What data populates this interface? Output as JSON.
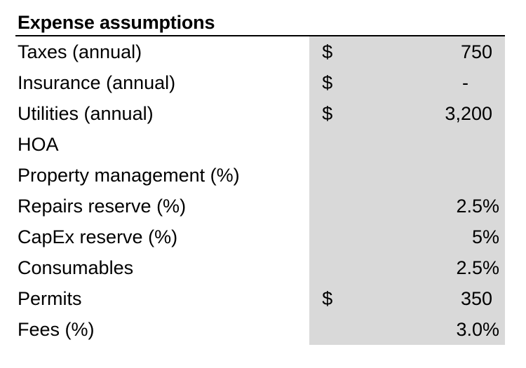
{
  "table": {
    "title": "Expense assumptions",
    "rows": [
      {
        "label": "Taxes (annual)",
        "currency": "$",
        "amount": "750",
        "percent": ""
      },
      {
        "label": "Insurance (annual)",
        "currency": "$",
        "amount": "-",
        "percent": ""
      },
      {
        "label": "Utilities (annual)",
        "currency": "$",
        "amount": "3,200",
        "percent": ""
      },
      {
        "label": "HOA",
        "currency": "",
        "amount": "",
        "percent": ""
      },
      {
        "label": "Property management (%)",
        "currency": "",
        "amount": "",
        "percent": ""
      },
      {
        "label": "Repairs reserve (%)",
        "currency": "",
        "amount": "",
        "percent": "2.5%"
      },
      {
        "label": "CapEx reserve (%)",
        "currency": "",
        "amount": "",
        "percent": "5%"
      },
      {
        "label": "Consumables",
        "currency": "",
        "amount": "",
        "percent": "2.5%"
      },
      {
        "label": "Permits",
        "currency": "$",
        "amount": "350",
        "percent": ""
      },
      {
        "label": "Fees (%)",
        "currency": "",
        "amount": "",
        "percent": "3.0%"
      }
    ]
  },
  "colors": {
    "input_cell_fill": "#d9d9d9",
    "header_rule": "#000000"
  }
}
